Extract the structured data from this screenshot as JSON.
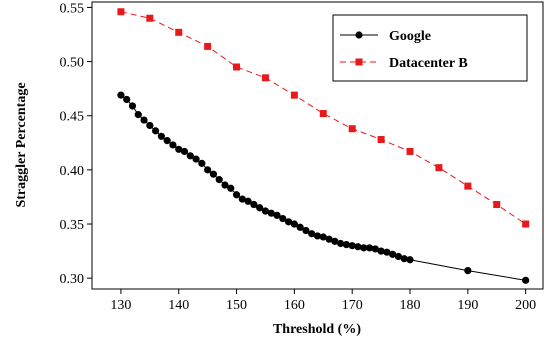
{
  "chart_data": {
    "type": "line",
    "xlabel": "Threshold (%)",
    "ylabel": "Straggler Percentage",
    "xlim": [
      125,
      203
    ],
    "ylim": [
      0.29,
      0.555
    ],
    "xticks": [
      130,
      140,
      150,
      160,
      170,
      180,
      190,
      200
    ],
    "yticks": [
      0.3,
      0.35,
      0.4,
      0.45,
      0.5,
      0.55
    ],
    "ytick_labels": [
      "0.30",
      "0.35",
      "0.40",
      "0.45",
      "0.50",
      "0.55"
    ],
    "grid": false,
    "legend_position": "top-right",
    "series": [
      {
        "name": "Google",
        "color": "#000000",
        "line_style": "solid",
        "marker": "circle",
        "x": [
          130,
          131,
          132,
          133,
          134,
          135,
          136,
          137,
          138,
          139,
          140,
          141,
          142,
          143,
          144,
          145,
          146,
          147,
          148,
          149,
          150,
          151,
          152,
          153,
          154,
          155,
          156,
          157,
          158,
          159,
          160,
          161,
          162,
          163,
          164,
          165,
          166,
          167,
          168,
          169,
          170,
          171,
          172,
          173,
          174,
          175,
          176,
          177,
          178,
          179,
          180,
          190,
          200
        ],
        "y": [
          0.469,
          0.465,
          0.459,
          0.451,
          0.446,
          0.441,
          0.436,
          0.431,
          0.427,
          0.423,
          0.419,
          0.417,
          0.413,
          0.41,
          0.406,
          0.4,
          0.396,
          0.391,
          0.386,
          0.383,
          0.377,
          0.373,
          0.371,
          0.368,
          0.365,
          0.362,
          0.36,
          0.358,
          0.355,
          0.352,
          0.35,
          0.347,
          0.344,
          0.341,
          0.339,
          0.338,
          0.336,
          0.334,
          0.332,
          0.331,
          0.33,
          0.329,
          0.328,
          0.328,
          0.327,
          0.325,
          0.324,
          0.322,
          0.32,
          0.318,
          0.317,
          0.307,
          0.298
        ]
      },
      {
        "name": "Datacenter B",
        "color": "#e8191b",
        "line_style": "dashed",
        "marker": "square",
        "x": [
          130,
          135,
          140,
          145,
          150,
          155,
          160,
          165,
          170,
          175,
          180,
          185,
          190,
          195,
          200
        ],
        "y": [
          0.546,
          0.54,
          0.527,
          0.514,
          0.495,
          0.485,
          0.469,
          0.452,
          0.438,
          0.428,
          0.417,
          0.402,
          0.385,
          0.368,
          0.35
        ]
      }
    ]
  }
}
